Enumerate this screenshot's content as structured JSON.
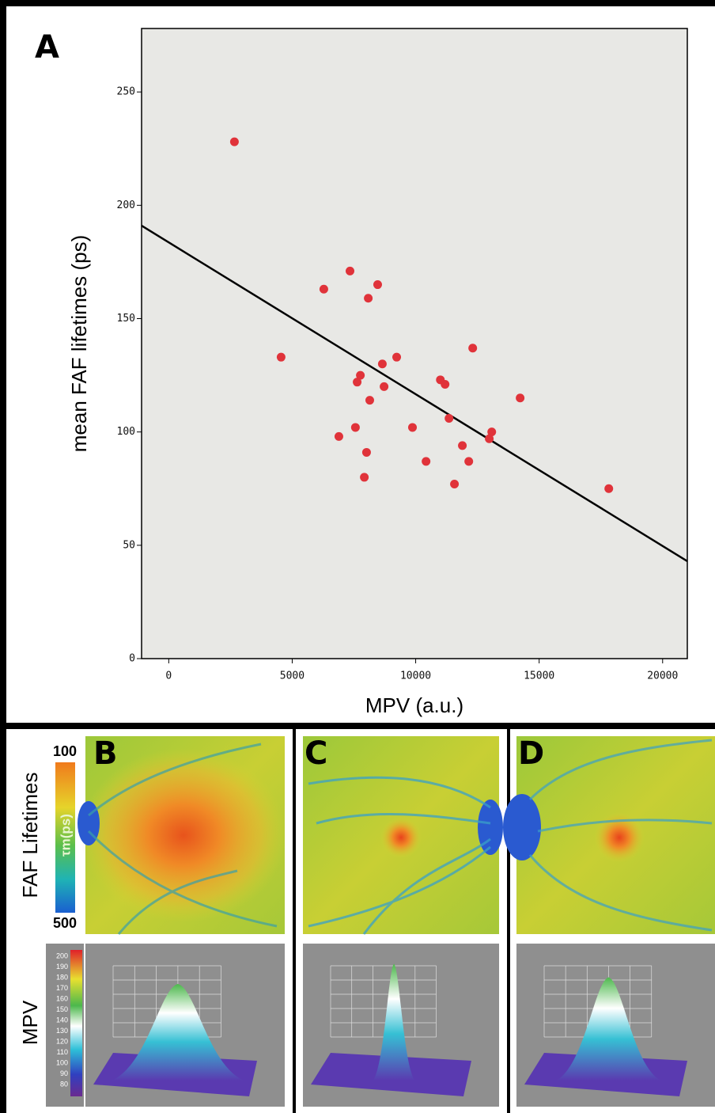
{
  "chart_data": {
    "type": "scatter",
    "panel_label": "A",
    "xlabel": "MPV (a.u.)",
    "ylabel": "mean FAF lifetimes (ps)",
    "x": [
      2660,
      4550,
      6280,
      7340,
      8460,
      8080,
      8650,
      9230,
      7760,
      7630,
      8720,
      8140,
      11000,
      11190,
      12310,
      14230,
      11350,
      7560,
      6890,
      9870,
      13080,
      12980,
      11890,
      8010,
      10420,
      12150,
      7920,
      11570,
      17820
    ],
    "values": [
      228,
      133,
      163,
      171,
      165,
      159,
      130,
      133,
      125,
      122,
      120,
      114,
      123,
      121,
      137,
      115,
      106,
      102,
      98,
      102,
      100,
      97,
      94,
      91,
      87,
      87,
      80,
      77,
      75
    ],
    "color": "#e0333a",
    "fit": {
      "x": [
        -1100,
        21000
      ],
      "values": [
        191,
        43
      ],
      "color": "#000000"
    },
    "xlim": [
      -1100,
      21000
    ],
    "ylim": [
      0,
      278
    ],
    "xticks": [
      0,
      5000,
      10000,
      15000,
      20000
    ],
    "yticks": [
      0,
      50,
      100,
      150,
      200,
      250
    ],
    "grid": false
  },
  "panels": {
    "labels": [
      "B",
      "C",
      "D"
    ],
    "row_labels": [
      "FAF Lifetimes",
      "MPV"
    ],
    "faf_colorbar": {
      "top": "100",
      "bottom": "500",
      "label": "τm(ps)"
    },
    "mpv_colorbar": [
      "200",
      "190",
      "180",
      "170",
      "160",
      "150",
      "140",
      "130",
      "120",
      "110",
      "100",
      "90",
      "80"
    ]
  }
}
